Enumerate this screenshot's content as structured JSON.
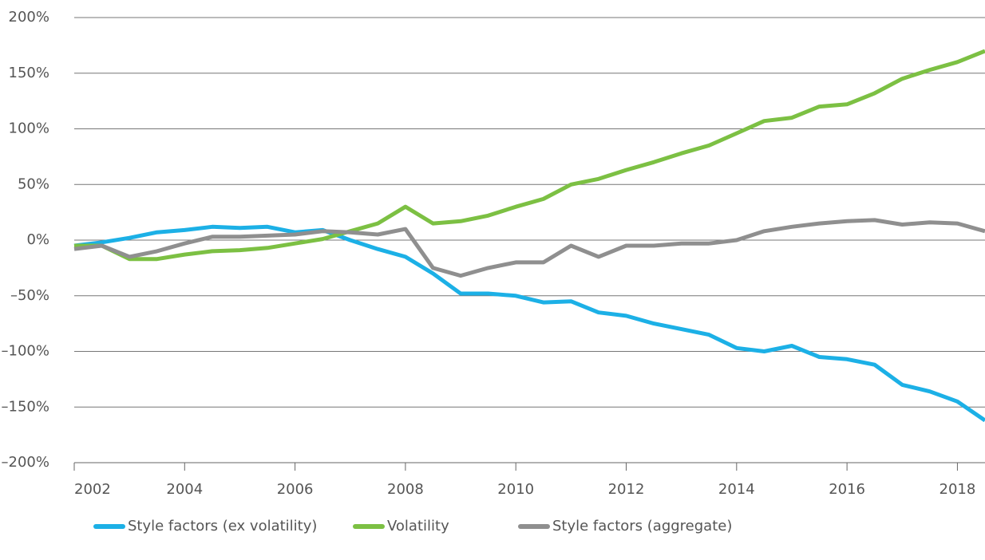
{
  "chart_data": {
    "type": "line",
    "x": [
      2002,
      2002.5,
      2003,
      2003.5,
      2004,
      2004.5,
      2005,
      2005.5,
      2006,
      2006.5,
      2007,
      2007.5,
      2008,
      2008.5,
      2009,
      2009.5,
      2010,
      2010.5,
      2011,
      2011.5,
      2012,
      2012.5,
      2013,
      2013.5,
      2014,
      2014.5,
      2015,
      2015.5,
      2016,
      2016.5,
      2017,
      2017.5,
      2018,
      2018.5
    ],
    "series": [
      {
        "name": "Style factors (ex volatility)",
        "color": "#1cb0e6",
        "values": [
          -5,
          -2,
          2,
          7,
          9,
          12,
          11,
          12,
          7,
          9,
          0,
          -8,
          -15,
          -30,
          -48,
          -48,
          -50,
          -56,
          -55,
          -65,
          -68,
          -75,
          -80,
          -85,
          -97,
          -100,
          -95,
          -105,
          -107,
          -112,
          -130,
          -136,
          -145,
          -162
        ]
      },
      {
        "name": "Volatility",
        "color": "#7cc043",
        "values": [
          -5,
          -5,
          -17,
          -17,
          -13,
          -10,
          -9,
          -7,
          -3,
          1,
          8,
          15,
          30,
          15,
          17,
          22,
          30,
          37,
          50,
          55,
          63,
          70,
          78,
          85,
          96,
          107,
          110,
          120,
          122,
          132,
          145,
          153,
          160,
          170
        ]
      },
      {
        "name": "Style factors (aggregate)",
        "color": "#8f8f8f",
        "values": [
          -8,
          -5,
          -15,
          -10,
          -3,
          3,
          3,
          4,
          5,
          8,
          7,
          5,
          10,
          -25,
          -32,
          -25,
          -20,
          -20,
          -5,
          -15,
          -5,
          -5,
          -3,
          -3,
          0,
          8,
          12,
          15,
          17,
          18,
          14,
          16,
          15,
          8
        ]
      }
    ],
    "xlim": [
      2002,
      2018.5
    ],
    "xticks": [
      2002,
      2004,
      2006,
      2008,
      2010,
      2012,
      2014,
      2016,
      2018
    ],
    "ylim": [
      -200,
      200
    ],
    "yticks": [
      {
        "value": -200,
        "label": "–200%"
      },
      {
        "value": -150,
        "label": "–150%"
      },
      {
        "value": -100,
        "label": "–100%"
      },
      {
        "value": -50,
        "label": "–50%"
      },
      {
        "value": 0,
        "label": "0%"
      },
      {
        "value": 50,
        "label": "50%"
      },
      {
        "value": 100,
        "label": "100%"
      },
      {
        "value": 150,
        "label": "150%"
      },
      {
        "value": 200,
        "label": "200%"
      }
    ],
    "grid": true,
    "legend": "bottom"
  }
}
